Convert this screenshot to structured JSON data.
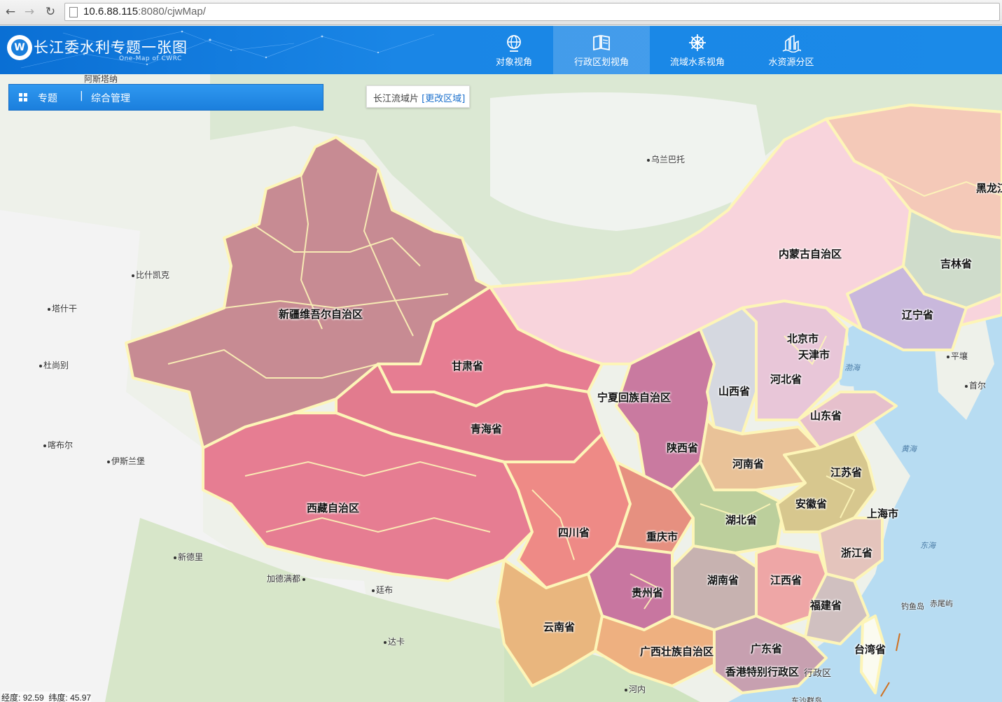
{
  "browser": {
    "url_host": "10.6.88.115",
    "url_rest": ":8080/cjwMap/"
  },
  "header": {
    "title": "长江委水利专题一张图",
    "subtitle": "One-Map of CWRC",
    "tabs": [
      {
        "label": "对象视角",
        "icon": "globe-icon",
        "active": false
      },
      {
        "label": "行政区划视角",
        "icon": "map-book-icon",
        "active": true
      },
      {
        "label": "流域水系视角",
        "icon": "ship-wheel-icon",
        "active": false
      },
      {
        "label": "水资源分区",
        "icon": "water-resource-icon",
        "active": false
      }
    ]
  },
  "toolbar": {
    "topic_label": "专题",
    "separator": "|",
    "manage_label": "综合管理"
  },
  "region": {
    "label": "长江流域片",
    "change_link": "[更改区域]"
  },
  "map": {
    "provinces": [
      "新疆维吾尔自治区",
      "甘肃省",
      "青海省",
      "西藏自治区",
      "内蒙古自治区",
      "吉林省",
      "辽宁省",
      "北京市",
      "天津市",
      "河北省",
      "山西省",
      "宁夏回族自治区",
      "陕西省",
      "山东省",
      "河南省",
      "江苏省",
      "安徽省",
      "上海市",
      "湖北省",
      "四川省",
      "重庆市",
      "浙江省",
      "湖南省",
      "江西省",
      "贵州省",
      "福建省",
      "云南省",
      "广西壮族自治区",
      "广东省",
      "台湾省",
      "黑龙江",
      "香港特别行政区"
    ],
    "cities": [
      "阿斯塔纳",
      "乌兰巴托",
      "比什凯克",
      "塔什干",
      "杜尚别",
      "喀布尔",
      "伊斯兰堡",
      "新德里",
      "加德满都",
      "廷布",
      "达卡",
      "平壤",
      "首尔",
      "河内",
      "钓鱼岛",
      "赤尾屿"
    ],
    "seas": [
      "渤海",
      "黄海",
      "东海"
    ],
    "misc": [
      "行政区",
      "东沙群岛"
    ]
  },
  "status": {
    "longitude_label": "经度:",
    "longitude": "92.59",
    "latitude_label": "纬度:",
    "latitude": "45.97"
  },
  "colors": {
    "header_blue": "#1b8ae8",
    "xinjiang": "#c78b93",
    "tibet": "#e67d92",
    "boundary": "#fdf5b8",
    "sea": "#b7dcf2"
  }
}
